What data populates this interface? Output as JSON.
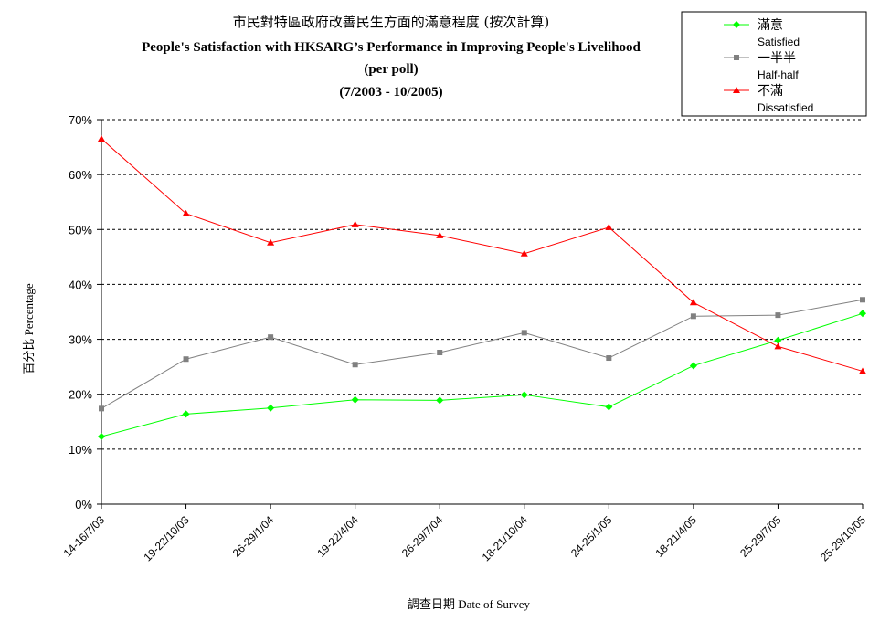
{
  "chart_data": {
    "type": "line",
    "title": "市民對特區政府改善民生方面的滿意程度 (按次計算)",
    "subtitle": "People's Satisfaction with HKSARG’s Performance in Improving People's Livelihood",
    "subtitle2": "(per poll)",
    "period": "(7/2003 -  10/2005)",
    "xlabel": "調查日期 Date of Survey",
    "ylabel": "百分比 Percentage",
    "ylim": [
      0,
      70
    ],
    "yticks": [
      "0%",
      "10%",
      "20%",
      "30%",
      "40%",
      "50%",
      "60%",
      "70%"
    ],
    "grid": true,
    "legend_position": "top-right",
    "categories": [
      "14-16/7/03",
      "19-22/10/03",
      "26-29/1/04",
      "19-22/4/04",
      "26-29/7/04",
      "18-21/10/04",
      "24-25/1/05",
      "18-21/4/05",
      "25-29/7/05",
      "25-29/10/05"
    ],
    "series": [
      {
        "name": "滿意",
        "name_en": "Satisfied",
        "color": "#00ff00",
        "marker": "diamond",
        "values": [
          12.3,
          16.4,
          17.5,
          19.0,
          18.9,
          19.9,
          17.7,
          25.2,
          29.8,
          34.7
        ]
      },
      {
        "name": "一半半",
        "name_en": "Half-half",
        "color": "#808080",
        "marker": "square",
        "values": [
          17.4,
          26.4,
          30.4,
          25.4,
          27.6,
          31.2,
          26.6,
          34.2,
          34.4,
          37.2
        ]
      },
      {
        "name": "不滿",
        "name_en": "Dissatisfied",
        "color": "#ff0000",
        "marker": "triangle",
        "values": [
          66.5,
          52.9,
          47.6,
          50.9,
          48.9,
          45.6,
          50.4,
          36.7,
          28.7,
          24.2
        ]
      }
    ]
  }
}
